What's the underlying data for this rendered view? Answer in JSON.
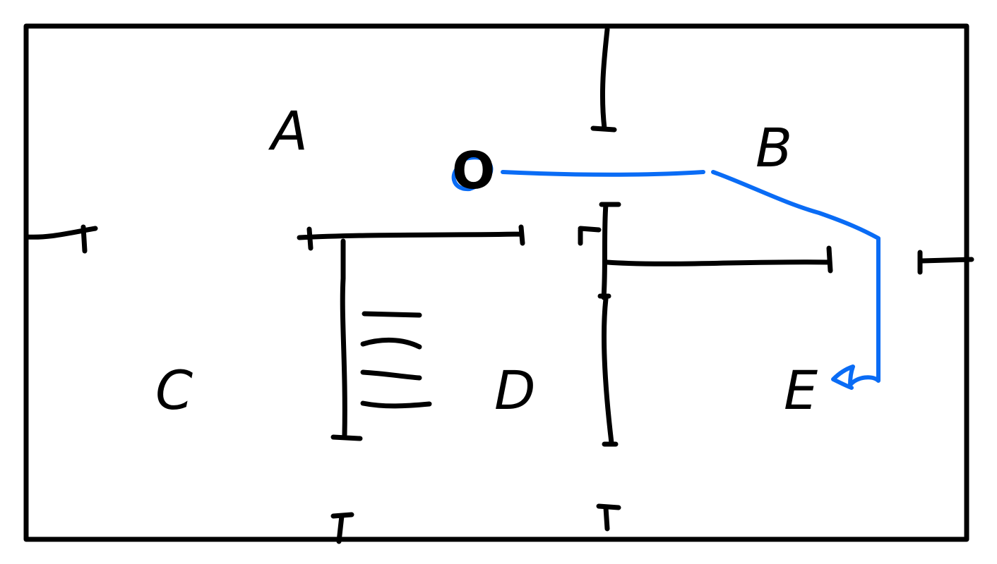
{
  "diagram": {
    "rooms": [
      {
        "id": "A",
        "label": "A"
      },
      {
        "id": "B",
        "label": "B"
      },
      {
        "id": "C",
        "label": "C"
      },
      {
        "id": "D",
        "label": "D"
      },
      {
        "id": "E",
        "label": "E"
      }
    ],
    "origin_label": "O",
    "colors": {
      "ink": "#000000",
      "route": "#0a6cf5",
      "background": "#ffffff"
    },
    "route_description_visible": false
  }
}
